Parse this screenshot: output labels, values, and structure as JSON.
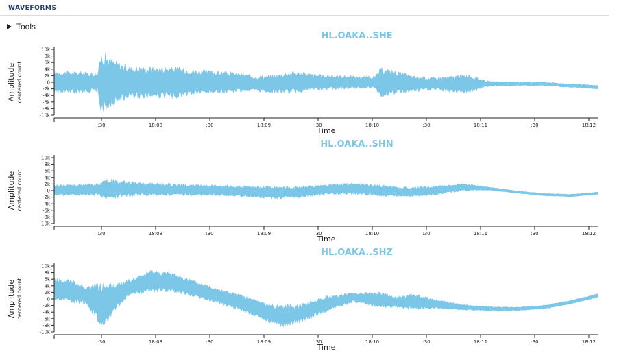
{
  "header": {
    "title": "WAVEFORMS"
  },
  "tools": {
    "label": "Tools"
  },
  "colors": {
    "waveform": "#7cc6e8",
    "title": "#7cc6e8",
    "header": "#1f3d6e"
  },
  "icons": {
    "tools_toggle": "triangle-right-icon"
  },
  "chart_data": [
    {
      "type": "area",
      "title": "HL.OAKA..SHE",
      "xlabel": "Time",
      "ylabel": "Amplitude",
      "ylabel_sub": "centered count",
      "ylim": [
        -10000,
        10000
      ],
      "yticks": [
        10000,
        8000,
        6000,
        4000,
        2000,
        0,
        -2000,
        -4000,
        -6000,
        -8000,
        -10000
      ],
      "ytick_labels": [
        "10k",
        "8k",
        "6k",
        "4k",
        "2k",
        "0",
        "-2k",
        "-4k",
        "-6k",
        "-8k",
        "-10k"
      ],
      "xticks": [
        ":30",
        "18:08",
        ":30",
        "18:09",
        ":30",
        "18:10",
        ":30",
        "18:11",
        ":30",
        "18:12"
      ],
      "series": [
        {
          "envelope_t": [
            0,
            0.03,
            0.08,
            0.085,
            0.09,
            0.11,
            0.14,
            0.18,
            0.22,
            0.26,
            0.3,
            0.34,
            0.37,
            0.4,
            0.44,
            0.48,
            0.52,
            0.59,
            0.6,
            0.62,
            0.66,
            0.7,
            0.76,
            0.8,
            0.84,
            0.9,
            0.95,
            1.0
          ],
          "envelope_center": [
            0,
            0,
            0,
            0,
            0,
            0,
            0,
            0,
            0,
            0,
            0,
            0,
            -500,
            -500,
            0,
            0,
            0,
            0,
            0,
            0,
            -500,
            -500,
            -500,
            -500,
            -500,
            -500,
            -1000,
            -1500
          ],
          "envelope_half": [
            3500,
            3500,
            3000,
            9000,
            9500,
            7000,
            5000,
            5000,
            5000,
            4000,
            3500,
            3000,
            2500,
            2800,
            3500,
            2500,
            2200,
            1800,
            4500,
            4000,
            2500,
            2000,
            3000,
            800,
            600,
            600,
            600,
            600
          ]
        }
      ]
    },
    {
      "type": "area",
      "title": "HL.OAKA..SHN",
      "xlabel": "Time",
      "ylabel": "Amplitude",
      "ylabel_sub": "centered count",
      "ylim": [
        -10000,
        10000
      ],
      "yticks": [
        10000,
        8000,
        6000,
        4000,
        2000,
        0,
        -2000,
        -4000,
        -6000,
        -8000,
        -10000
      ],
      "ytick_labels": [
        "10k",
        "8k",
        "6k",
        "4k",
        "2k",
        "0",
        "-2k",
        "-4k",
        "-6k",
        "-8k",
        "-10k"
      ],
      "xticks": [
        ":30",
        "18:08",
        ":30",
        "18:09",
        ":30",
        "18:10",
        ":30",
        "18:11",
        ":30",
        "18:12"
      ],
      "series": [
        {
          "envelope_t": [
            0,
            0.05,
            0.08,
            0.1,
            0.13,
            0.18,
            0.25,
            0.32,
            0.36,
            0.4,
            0.45,
            0.5,
            0.55,
            0.6,
            0.65,
            0.7,
            0.75,
            0.8,
            0.85,
            0.9,
            0.95,
            1.0
          ],
          "envelope_center": [
            0,
            200,
            300,
            500,
            500,
            400,
            200,
            0,
            -300,
            -600,
            -500,
            300,
            600,
            0,
            -500,
            0,
            1000,
            600,
            -400,
            -1200,
            -1500,
            -800
          ],
          "envelope_half": [
            1800,
            1800,
            2000,
            3200,
            2500,
            2000,
            1800,
            1700,
            1700,
            2000,
            1800,
            1600,
            1800,
            1800,
            1600,
            1500,
            1200,
            500,
            400,
            400,
            400,
            400
          ]
        }
      ]
    },
    {
      "type": "area",
      "title": "HL.OAKA..SHZ",
      "xlabel": "Time",
      "ylabel": "Amplitude",
      "ylabel_sub": "centered count",
      "ylim": [
        -10000,
        10000
      ],
      "yticks": [
        10000,
        8000,
        6000,
        4000,
        2000,
        0,
        -2000,
        -4000,
        -6000,
        -8000,
        -10000
      ],
      "ytick_labels": [
        "10k",
        "8k",
        "6k",
        "4k",
        "2k",
        "0",
        "-2k",
        "-4k",
        "-6k",
        "-8k",
        "-10k"
      ],
      "xticks": [
        ":30",
        "18:08",
        ":30",
        "18:09",
        ":30",
        "18:10",
        ":30",
        "18:11",
        ":30",
        "18:12"
      ],
      "series": [
        {
          "envelope_t": [
            0,
            0.03,
            0.06,
            0.08,
            0.09,
            0.11,
            0.14,
            0.18,
            0.22,
            0.26,
            0.3,
            0.35,
            0.4,
            0.42,
            0.45,
            0.5,
            0.55,
            0.6,
            0.63,
            0.66,
            0.7,
            0.75,
            0.8,
            0.85,
            0.9,
            0.95,
            1.0
          ],
          "envelope_center": [
            3000,
            2500,
            1000,
            -1000,
            -2000,
            500,
            3500,
            5500,
            5000,
            3000,
            1000,
            -1500,
            -4500,
            -5000,
            -4500,
            -1500,
            500,
            -300,
            -1000,
            -800,
            -1500,
            -2500,
            -3000,
            -3000,
            -2500,
            -1000,
            1000
          ],
          "envelope_half": [
            3500,
            3500,
            3000,
            6000,
            7000,
            4500,
            2500,
            3500,
            3000,
            2500,
            2500,
            2500,
            3000,
            3500,
            3000,
            2500,
            1500,
            2500,
            1800,
            2500,
            1500,
            900,
            700,
            600,
            600,
            600,
            600
          ]
        }
      ]
    }
  ]
}
